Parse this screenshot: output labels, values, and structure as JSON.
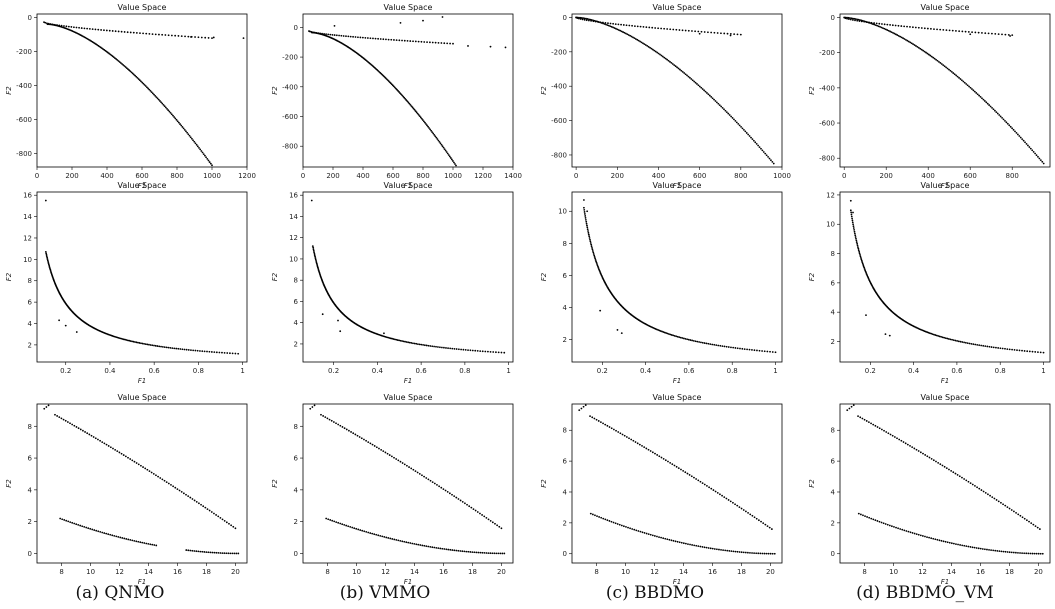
{
  "captions": [
    "(a) QNMO",
    "(b) VMMO",
    "(c) BBDMO",
    "(d) BBDMO_VM"
  ],
  "panel_title": "Value Space",
  "xlabel": "F1",
  "ylabel": "F2",
  "chart_data": [
    {
      "type": "scatter",
      "title": "Value Space",
      "xlabel": "F1",
      "ylabel": "F2",
      "xlim": [
        0,
        1200
      ],
      "ylim": [
        -880,
        20
      ],
      "xticks": [
        0,
        200,
        400,
        600,
        800,
        1000,
        1200
      ],
      "yticks": [
        0,
        -200,
        -400,
        -600,
        -800
      ],
      "front_upper": {
        "x": [
          40,
          1000
        ],
        "y": [
          -28,
          -122
        ]
      },
      "front_lower": {
        "x": [
          60,
          1000
        ],
        "y": [
          -40,
          -870
        ]
      },
      "extra_points": [
        [
          1180,
          -122
        ],
        [
          1010,
          -118
        ],
        [
          880,
          -115
        ]
      ]
    },
    {
      "type": "scatter",
      "title": "Value Space",
      "xlabel": "F1",
      "ylabel": "F2",
      "xlim": [
        0,
        1400
      ],
      "ylim": [
        -940,
        90
      ],
      "xticks": [
        0,
        200,
        400,
        600,
        800,
        1000,
        1200,
        1400
      ],
      "yticks": [
        0,
        -200,
        -400,
        -600,
        -800
      ],
      "front_upper": {
        "x": [
          40,
          1000
        ],
        "y": [
          -25,
          -110
        ]
      },
      "front_lower": {
        "x": [
          60,
          1020
        ],
        "y": [
          -35,
          -930
        ]
      },
      "extra_points": [
        [
          930,
          70
        ],
        [
          800,
          45
        ],
        [
          650,
          30
        ],
        [
          210,
          10
        ],
        [
          1350,
          -135
        ],
        [
          1250,
          -130
        ],
        [
          1100,
          -125
        ]
      ]
    },
    {
      "type": "scatter",
      "title": "Value Space",
      "xlabel": "F1",
      "ylabel": "F2",
      "xlim": [
        -20,
        1000
      ],
      "ylim": [
        -870,
        20
      ],
      "xticks": [
        0,
        200,
        400,
        600,
        800,
        1000
      ],
      "yticks": [
        0,
        -200,
        -400,
        -600,
        -800
      ],
      "front_upper": {
        "x": [
          0,
          800
        ],
        "y": [
          0,
          -100
        ]
      },
      "front_lower": {
        "x": [
          0,
          960
        ],
        "y": [
          0,
          -850
        ]
      },
      "extra_points": [
        [
          750,
          -105
        ],
        [
          600,
          -95
        ]
      ]
    },
    {
      "type": "scatter",
      "title": "Value Space",
      "xlabel": "F1",
      "ylabel": "F2",
      "xlim": [
        -20,
        980
      ],
      "ylim": [
        -850,
        20
      ],
      "xticks": [
        0,
        200,
        400,
        600,
        800
      ],
      "yticks": [
        0,
        -200,
        -400,
        -600,
        -800
      ],
      "front_upper": {
        "x": [
          0,
          800
        ],
        "y": [
          0,
          -100
        ]
      },
      "front_lower": {
        "x": [
          0,
          950
        ],
        "y": [
          0,
          -830
        ]
      },
      "extra_points": [
        [
          790,
          -105
        ],
        [
          600,
          -95
        ]
      ]
    },
    {
      "type": "scatter",
      "title": "Value Space",
      "xlabel": "F1",
      "ylabel": "F2",
      "xlim": [
        0.07,
        1.02
      ],
      "ylim": [
        0.4,
        16.3
      ],
      "xticks": [
        0.2,
        0.4,
        0.6,
        0.8,
        1.0
      ],
      "yticks": [
        2,
        4,
        6,
        8,
        10,
        12,
        14,
        16
      ],
      "curve": {
        "type": "reciprocal",
        "x_from": 0.11,
        "x_to": 0.98,
        "a": -0.03,
        "b": 1.18
      },
      "extra_points": [
        [
          0.11,
          15.5
        ],
        [
          0.17,
          4.3
        ],
        [
          0.2,
          3.8
        ],
        [
          0.25,
          3.2
        ]
      ]
    },
    {
      "type": "scatter",
      "title": "Value Space",
      "xlabel": "F1",
      "ylabel": "F2",
      "xlim": [
        0.06,
        1.02
      ],
      "ylim": [
        0.3,
        16.3
      ],
      "xticks": [
        0.2,
        0.4,
        0.6,
        0.8,
        1.0
      ],
      "yticks": [
        2,
        4,
        6,
        8,
        10,
        12,
        14,
        16
      ],
      "curve": {
        "type": "reciprocal",
        "x_from": 0.105,
        "x_to": 0.98,
        "a": -0.03,
        "b": 1.18
      },
      "extra_points": [
        [
          0.1,
          15.5
        ],
        [
          0.15,
          4.8
        ],
        [
          0.22,
          4.2
        ],
        [
          0.23,
          3.2
        ],
        [
          0.43,
          3.0
        ]
      ]
    },
    {
      "type": "scatter",
      "title": "Value Space",
      "xlabel": "F1",
      "ylabel": "F2",
      "xlim": [
        0.06,
        1.03
      ],
      "ylim": [
        0.6,
        11.2
      ],
      "xticks": [
        0.2,
        0.4,
        0.6,
        0.8,
        1.0
      ],
      "yticks": [
        2,
        4,
        6,
        8,
        10
      ],
      "curve": {
        "type": "reciprocal",
        "x_from": 0.115,
        "x_to": 1.0,
        "a": 0.04,
        "b": 1.17
      },
      "extra_points": [
        [
          0.115,
          10.7
        ],
        [
          0.13,
          10.0
        ],
        [
          0.19,
          3.8
        ],
        [
          0.27,
          2.6
        ],
        [
          0.29,
          2.4
        ]
      ]
    },
    {
      "type": "scatter",
      "title": "Value Space",
      "xlabel": "F1",
      "ylabel": "F2",
      "xlim": [
        0.06,
        1.03
      ],
      "ylim": [
        0.6,
        12.2
      ],
      "xticks": [
        0.2,
        0.4,
        0.6,
        0.8,
        1.0
      ],
      "yticks": [
        2,
        4,
        6,
        8,
        10,
        12
      ],
      "curve": {
        "type": "reciprocal",
        "x_from": 0.11,
        "x_to": 1.0,
        "a": 0.04,
        "b": 1.2
      },
      "extra_points": [
        [
          0.11,
          11.6
        ],
        [
          0.12,
          10.8
        ],
        [
          0.18,
          3.8
        ],
        [
          0.27,
          2.5
        ],
        [
          0.29,
          2.4
        ]
      ]
    },
    {
      "type": "scatter",
      "title": "Value Space",
      "xlabel": "F1",
      "ylabel": "F2",
      "xlim": [
        6.3,
        20.8
      ],
      "ylim": [
        -0.6,
        9.4
      ],
      "xticks": [
        8,
        10,
        12,
        14,
        16,
        18,
        20
      ],
      "yticks": [
        0,
        2,
        4,
        6,
        8
      ],
      "upper": {
        "x": [
          6.8,
          20.0
        ],
        "y": [
          9.1,
          1.0
        ]
      },
      "lower": {
        "x": [
          7.9,
          20.2
        ],
        "y": [
          2.2,
          0.0
        ]
      },
      "gap": [
        14.6,
        16.5
      ]
    },
    {
      "type": "scatter",
      "title": "Value Space",
      "xlabel": "F1",
      "ylabel": "F2",
      "xlim": [
        6.3,
        20.8
      ],
      "ylim": [
        -0.6,
        9.4
      ],
      "xticks": [
        8,
        10,
        12,
        14,
        16,
        18,
        20
      ],
      "yticks": [
        0,
        2,
        4,
        6,
        8
      ],
      "upper": {
        "x": [
          6.8,
          20.0
        ],
        "y": [
          9.1,
          1.0
        ]
      },
      "lower": {
        "x": [
          7.9,
          20.2
        ],
        "y": [
          2.2,
          0.0
        ]
      },
      "gap": [
        0,
        0
      ]
    },
    {
      "type": "scatter",
      "title": "Value Space",
      "xlabel": "F1",
      "ylabel": "F2",
      "xlim": [
        6.3,
        20.8
      ],
      "ylim": [
        -0.6,
        9.7
      ],
      "xticks": [
        8,
        10,
        12,
        14,
        16,
        18,
        20
      ],
      "yticks": [
        0,
        2,
        4,
        6,
        8
      ],
      "upper": {
        "x": [
          6.8,
          20.1
        ],
        "y": [
          9.3,
          1.0
        ]
      },
      "lower": {
        "x": [
          7.6,
          20.3
        ],
        "y": [
          2.6,
          0.0
        ]
      },
      "gap": [
        0,
        0
      ]
    },
    {
      "type": "scatter",
      "title": "Value Space",
      "xlabel": "F1",
      "ylabel": "F2",
      "xlim": [
        6.3,
        20.8
      ],
      "ylim": [
        -0.6,
        9.7
      ],
      "xticks": [
        8,
        10,
        12,
        14,
        16,
        18,
        20
      ],
      "yticks": [
        0,
        2,
        4,
        6,
        8
      ],
      "upper": {
        "x": [
          6.8,
          20.1
        ],
        "y": [
          9.3,
          1.0
        ]
      },
      "lower": {
        "x": [
          7.6,
          20.3
        ],
        "y": [
          2.6,
          0.0
        ]
      },
      "gap": [
        0,
        0
      ]
    }
  ]
}
